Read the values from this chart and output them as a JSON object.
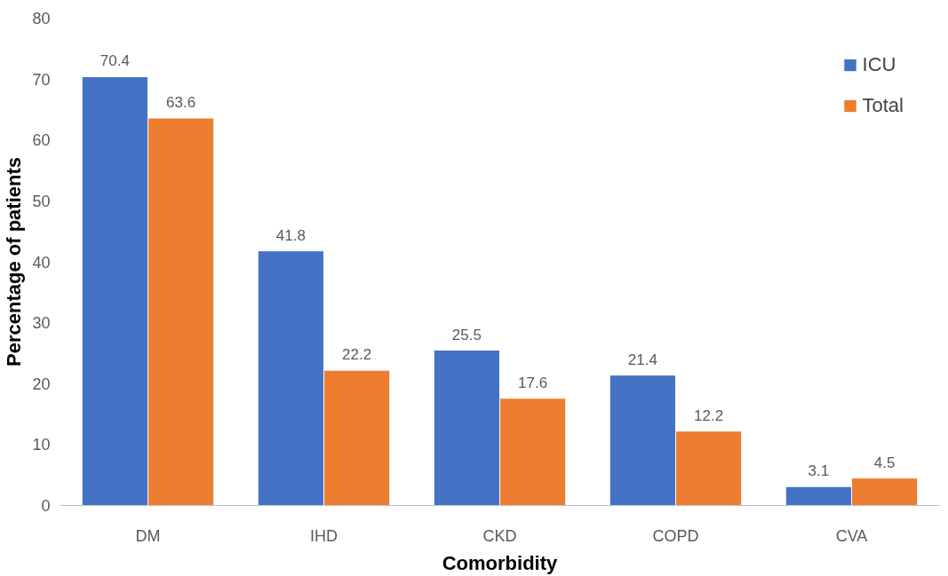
{
  "chart_data": {
    "type": "bar",
    "xlabel": "Comorbidity",
    "ylabel": "Percentage of patients",
    "categories": [
      "DM",
      "IHD",
      "CKD",
      "COPD",
      "CVA"
    ],
    "series": [
      {
        "name": "ICU",
        "color": "#4472c4",
        "values": [
          70.4,
          41.8,
          25.5,
          21.4,
          3.1
        ]
      },
      {
        "name": "Total",
        "color": "#ed7d31",
        "values": [
          63.6,
          22.2,
          17.6,
          12.2,
          4.5
        ]
      }
    ],
    "ylim": [
      0,
      80
    ],
    "yticks": [
      0,
      10,
      20,
      30,
      40,
      50,
      60,
      70,
      80
    ],
    "grid": false,
    "legend": "top right",
    "data_labels": true
  }
}
